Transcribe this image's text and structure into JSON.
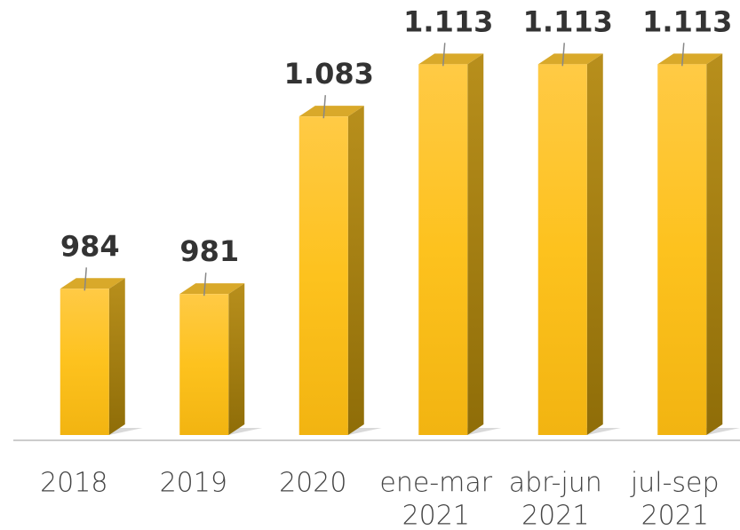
{
  "chart_data": {
    "type": "bar3d",
    "categories": [
      "2018",
      "2019",
      "2020",
      [
        "ene-mar",
        "2021"
      ],
      [
        "abr-jun",
        "2021"
      ],
      [
        "jul-sep",
        "2021"
      ]
    ],
    "values": [
      984,
      981,
      1083,
      1113,
      1113,
      1113
    ],
    "value_labels": [
      "984",
      "981",
      "1.083",
      "1.113",
      "1.113",
      "1.113"
    ],
    "color": "#fdc21e",
    "ylim": [
      900,
      1130
    ]
  }
}
